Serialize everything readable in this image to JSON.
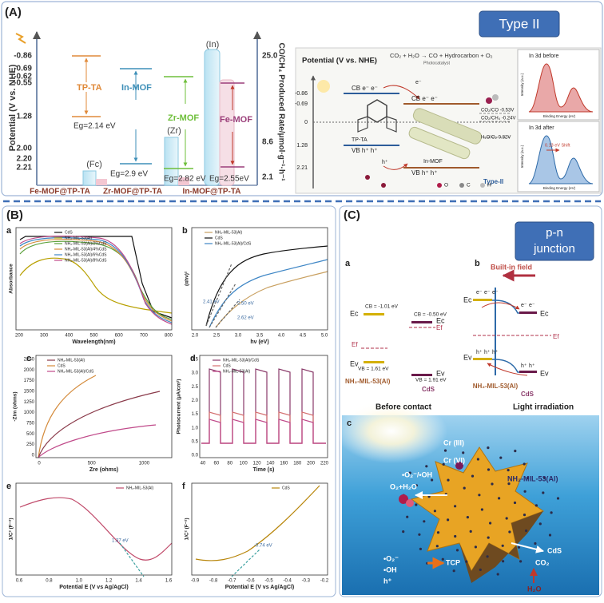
{
  "panel_a": {
    "label": "(A)",
    "badge": "Type II",
    "potential_axis": {
      "title": "Potential (V vs. NHE)",
      "ticks": [
        "-0.86",
        "-0.69",
        "-0.62",
        "-0.55",
        "1.28",
        "2.00",
        "2.20",
        "2.21"
      ]
    },
    "rate_axis": {
      "title": "CO/CH₄ Produced Rate/μmol·g⁻¹·h⁻¹",
      "ticks": [
        "25.0",
        "8.6",
        "2.1"
      ]
    },
    "levels": [
      {
        "name": "TP-TA",
        "gap": "Eg=2.14 eV"
      },
      {
        "name": "In-MOF",
        "gap": "Eg=2.9 eV"
      },
      {
        "name": "Zr-MOF",
        "gap": "Eg=2.82 eV"
      },
      {
        "name": "Fe-MOF",
        "gap": "Eg=2.55eV"
      }
    ],
    "composites": [
      {
        "name": "Fe-MOF@TP-TA",
        "metal": "(Fc)"
      },
      {
        "name": "Zr-MOF@TP-TA",
        "metal": "(Zr)"
      },
      {
        "name": "In-MOF@TP-TA",
        "metal": "(In)"
      }
    ],
    "scheme": {
      "axis_title": "Potential (V vs. NHE)",
      "ticks": [
        "-0.86",
        "-0.69",
        "0",
        "1.28",
        "2.21"
      ],
      "reaction": "CO₂ + H₂O → CO + Hydrocarbon + O₂",
      "catalyst": "Photocatalyst",
      "cb": "CB e⁻ e⁻",
      "vb": "VB h⁺ h⁺",
      "left_name": "TP-TA",
      "right_name": "In-MOF",
      "electron": "e⁻",
      "hole": "h⁺",
      "couples": [
        "CO₂/CO -0.53V",
        "CO₂/CH₄ -0.24V",
        "H₂O/O₂ 0.82V"
      ],
      "type": "Type-II",
      "atoms": [
        "O",
        "C",
        "H"
      ],
      "xps": [
        {
          "title": "In 3d before",
          "y_title": "Intensity (a.u.)",
          "x_title": "Binding Energy (eV)"
        },
        {
          "title": "In 3d after",
          "y_title": "Intensity (a.u.)",
          "x_title": "Binding Energy (eV)",
          "shift": "0.13 eV Shift"
        }
      ]
    }
  },
  "panel_b": {
    "label": "(B)",
    "plots": [
      {
        "letter": "a",
        "x_title": "Wavelength(nm)",
        "y_title": "Absorbance",
        "xticks": [
          "200",
          "300",
          "400",
          "500",
          "600",
          "700",
          "800"
        ],
        "legend": [
          "CdS",
          "NH₂-MIL-53(Al)",
          "NH₂-MIL-53(Al)/2%CdS",
          "NH₂-MIL-53(Al)/4%CdS",
          "NH₂-MIL-53(Al)/6%CdS",
          "NH₂-MIL-53(Al)/8%CdS"
        ]
      },
      {
        "letter": "b",
        "x_title": "hν (eV)",
        "y_title": "(αhν)²",
        "xticks": [
          "2.0",
          "2.5",
          "3.0",
          "3.5",
          "4.0",
          "4.5",
          "5.0"
        ],
        "legend": [
          "NH₂-MIL-53(Al)",
          "CdS",
          "NH₂-MIL-53(Al)/CdS"
        ],
        "annotations": [
          "2.41 eV",
          "2.50 eV",
          "2.62 eV"
        ]
      },
      {
        "letter": "c",
        "x_title": "Zre (ohms)",
        "y_title": "-Zim (ohms)",
        "xticks": [
          "0",
          "500",
          "1000"
        ],
        "yticks": [
          "0",
          "250",
          "500",
          "750",
          "1000",
          "1250",
          "1500",
          "1750",
          "2000",
          "2250"
        ],
        "legend": [
          "NH₂-MIL-53(Al)",
          "CdS",
          "NH₂-MIL-53(Al)/CdS"
        ]
      },
      {
        "letter": "d",
        "x_title": "Time (s)",
        "y_title": "Photocurrent (μA/cm²)",
        "xticks": [
          "40",
          "60",
          "80",
          "100",
          "120",
          "140",
          "160",
          "180",
          "200",
          "220"
        ],
        "yticks": [
          "0.0",
          "0.5",
          "1.0",
          "1.5",
          "2.0",
          "2.5",
          "3.0",
          "3.5"
        ],
        "legend": [
          "NH₂-MIL-53(Al)/CdS",
          "CdS",
          "NH₂-MIL-53(Al)"
        ]
      },
      {
        "letter": "e",
        "x_title": "Potential E (V vs Ag/AgCl)",
        "y_title": "1/C² (F⁻²)",
        "xticks": [
          "0.6",
          "0.8",
          "1.0",
          "1.2",
          "1.4",
          "1.6"
        ],
        "legend": [
          "NH₂-MIL-53(Al)"
        ],
        "annotations": [
          "1.37 eV"
        ]
      },
      {
        "letter": "f",
        "x_title": "Potential E (V vs Ag/AgCl)",
        "y_title": "1/C² (F⁻²)",
        "xticks": [
          "-0.9",
          "-0.8",
          "-0.7",
          "-0.6",
          "-0.5",
          "-0.4",
          "-0.3",
          "-0.2"
        ],
        "legend": [
          "CdS"
        ],
        "annotations": [
          "-0.74 eV"
        ]
      }
    ]
  },
  "panel_c": {
    "label": "(C)",
    "badge": [
      "p-n",
      "junction"
    ],
    "a": {
      "letter": "a",
      "caption": "Before contact",
      "left": {
        "name": "NH₂-MIL-53(Al)",
        "cb": "CB = -1.01 eV",
        "vb": "VB = 1.61 eV",
        "ec": "Ec",
        "ef": "Ef",
        "ev": "Ev"
      },
      "right": {
        "name": "CdS",
        "cb": "CB = -0.50 eV",
        "vb": "VB = 1.91 eV",
        "ec": "Ec",
        "ef": "Ef",
        "ev": "Ev"
      }
    },
    "b": {
      "letter": "b",
      "caption": "Light irradiation",
      "field": "Built-in field",
      "electron": "e⁻",
      "hole": "h⁺",
      "left": {
        "name": "NH₂-MIL-53(Al)",
        "ec": "Ec",
        "ev": "Ev"
      },
      "right": {
        "name": "CdS",
        "ec": "Ec",
        "ef": "Ef",
        "ev": "Ev"
      }
    },
    "c": {
      "letter": "c",
      "labels": [
        "Cr (III)",
        "Cr (VI)",
        "•O₂⁻/•OH",
        "O₂+H₂O",
        "NH₂-MIL-53(Al)",
        "CdS",
        "CO₂",
        "•O₂⁻",
        "•OH",
        "h⁺",
        "TCP",
        "H₂O"
      ]
    }
  }
}
